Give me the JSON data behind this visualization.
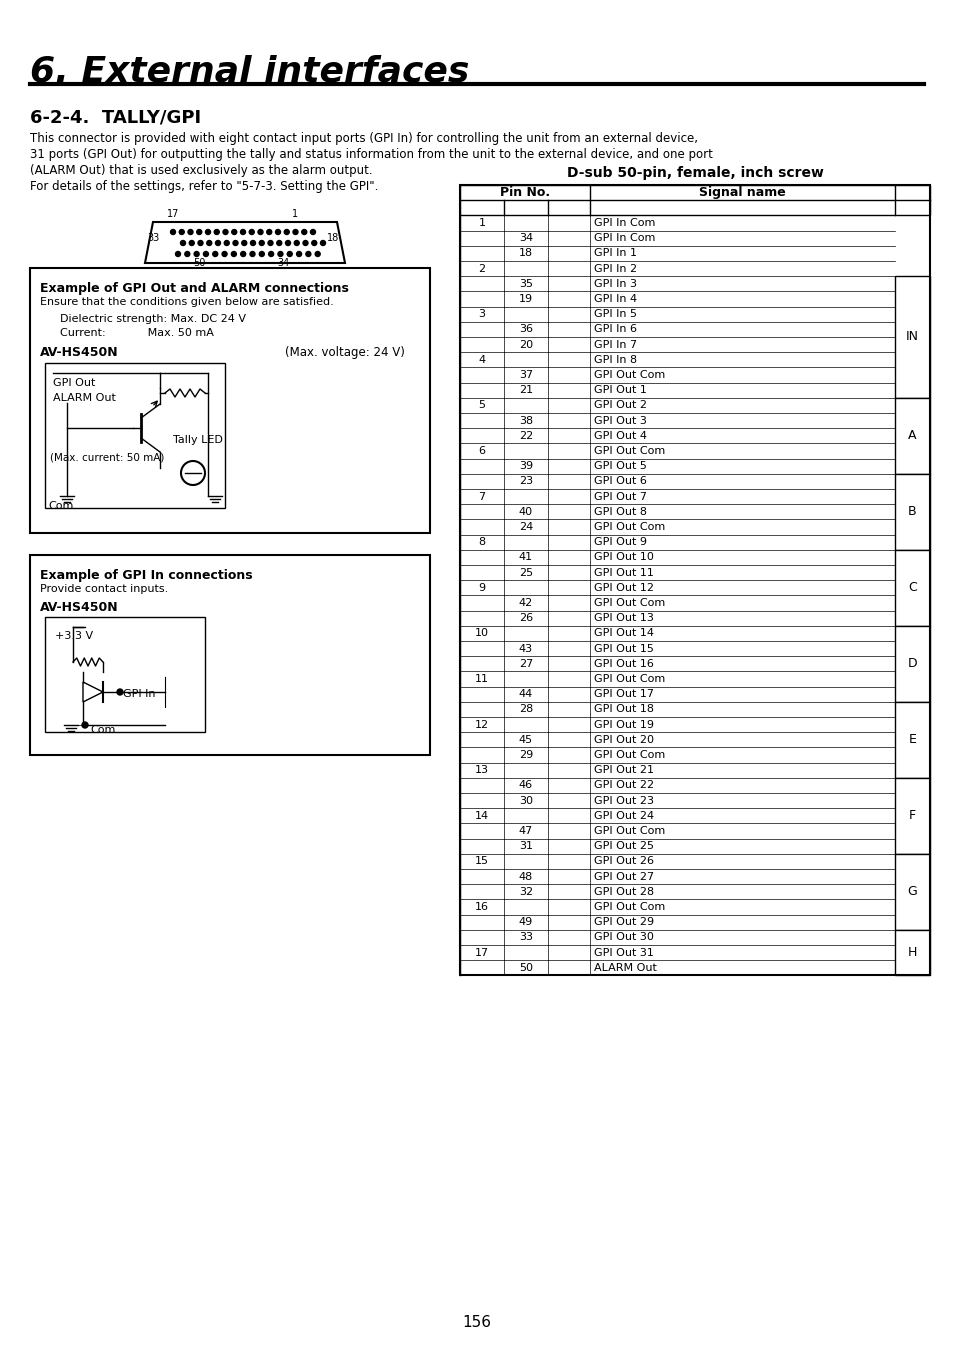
{
  "title": "6. External interfaces",
  "section": "6-2-4.  TALLY/GPI",
  "body_text": "This connector is provided with eight contact input ports (GPI In) for controlling the unit from an external device,\n31 ports (GPI Out) for outputting the tally and status information from the unit to the external device, and one port\n(ALARM Out) that is used exclusively as the alarm output.\nFor details of the settings, refer to \"5-7-3. Setting the GPI\".",
  "table_title": "D-sub 50-pin, female, inch screw",
  "table_rows": [
    [
      "1",
      "",
      "GPI In Com",
      ""
    ],
    [
      "",
      "34",
      "GPI In Com",
      ""
    ],
    [
      "",
      "18",
      "GPI In 1",
      ""
    ],
    [
      "2",
      "",
      "GPI In 2",
      ""
    ],
    [
      "",
      "35",
      "GPI In 3",
      "IN"
    ],
    [
      "",
      "19",
      "GPI In 4",
      ""
    ],
    [
      "3",
      "",
      "GPI In 5",
      ""
    ],
    [
      "",
      "36",
      "GPI In 6",
      ""
    ],
    [
      "",
      "20",
      "GPI In 7",
      ""
    ],
    [
      "4",
      "",
      "GPI In 8",
      ""
    ],
    [
      "",
      "37",
      "GPI Out Com",
      ""
    ],
    [
      "",
      "21",
      "GPI Out 1",
      ""
    ],
    [
      "5",
      "",
      "GPI Out 2",
      "A"
    ],
    [
      "",
      "38",
      "GPI Out 3",
      ""
    ],
    [
      "",
      "22",
      "GPI Out 4",
      ""
    ],
    [
      "6",
      "",
      "GPI Out Com",
      ""
    ],
    [
      "",
      "39",
      "GPI Out 5",
      ""
    ],
    [
      "",
      "23",
      "GPI Out 6",
      "B"
    ],
    [
      "7",
      "",
      "GPI Out 7",
      ""
    ],
    [
      "",
      "40",
      "GPI Out 8",
      ""
    ],
    [
      "",
      "24",
      "GPI Out Com",
      ""
    ],
    [
      "8",
      "",
      "GPI Out 9",
      ""
    ],
    [
      "",
      "41",
      "GPI Out 10",
      "C"
    ],
    [
      "",
      "25",
      "GPI Out 11",
      ""
    ],
    [
      "9",
      "",
      "GPI Out 12",
      ""
    ],
    [
      "",
      "42",
      "GPI Out Com",
      ""
    ],
    [
      "",
      "26",
      "GPI Out 13",
      ""
    ],
    [
      "10",
      "",
      "GPI Out 14",
      "D"
    ],
    [
      "",
      "43",
      "GPI Out 15",
      ""
    ],
    [
      "",
      "27",
      "GPI Out 16",
      ""
    ],
    [
      "11",
      "",
      "GPI Out Com",
      ""
    ],
    [
      "",
      "44",
      "GPI Out 17",
      ""
    ],
    [
      "",
      "28",
      "GPI Out 18",
      "E"
    ],
    [
      "12",
      "",
      "GPI Out 19",
      ""
    ],
    [
      "",
      "45",
      "GPI Out 20",
      ""
    ],
    [
      "",
      "29",
      "GPI Out Com",
      ""
    ],
    [
      "13",
      "",
      "GPI Out 21",
      ""
    ],
    [
      "",
      "46",
      "GPI Out 22",
      "F"
    ],
    [
      "",
      "30",
      "GPI Out 23",
      ""
    ],
    [
      "14",
      "",
      "GPI Out 24",
      ""
    ],
    [
      "",
      "47",
      "GPI Out Com",
      ""
    ],
    [
      "",
      "31",
      "GPI Out 25",
      ""
    ],
    [
      "15",
      "",
      "GPI Out 26",
      "G"
    ],
    [
      "",
      "48",
      "GPI Out 27",
      ""
    ],
    [
      "",
      "32",
      "GPI Out 28",
      ""
    ],
    [
      "16",
      "",
      "GPI Out Com",
      ""
    ],
    [
      "",
      "49",
      "GPI Out 29",
      ""
    ],
    [
      "",
      "33",
      "GPI Out 30",
      "H"
    ],
    [
      "17",
      "",
      "GPI Out 31",
      ""
    ],
    [
      "",
      "50",
      "ALARM Out",
      ""
    ]
  ],
  "box1_title": "Example of GPI Out and ALARM connections",
  "box1_subtitle": "Ensure that the conditions given below are satisfied.",
  "box1_line1": "Dielectric strength: Max. DC 24 V",
  "box1_line2": "Current:            Max. 50 mA",
  "box1_device": "AV-HS450N",
  "box1_maxv": "(Max. voltage: 24 V)",
  "box2_title": "Example of GPI In connections",
  "box2_subtitle": "Provide contact inputs.",
  "box2_device": "AV-HS450N",
  "page_number": "156",
  "bg_color": "#ffffff",
  "text_color": "#000000"
}
